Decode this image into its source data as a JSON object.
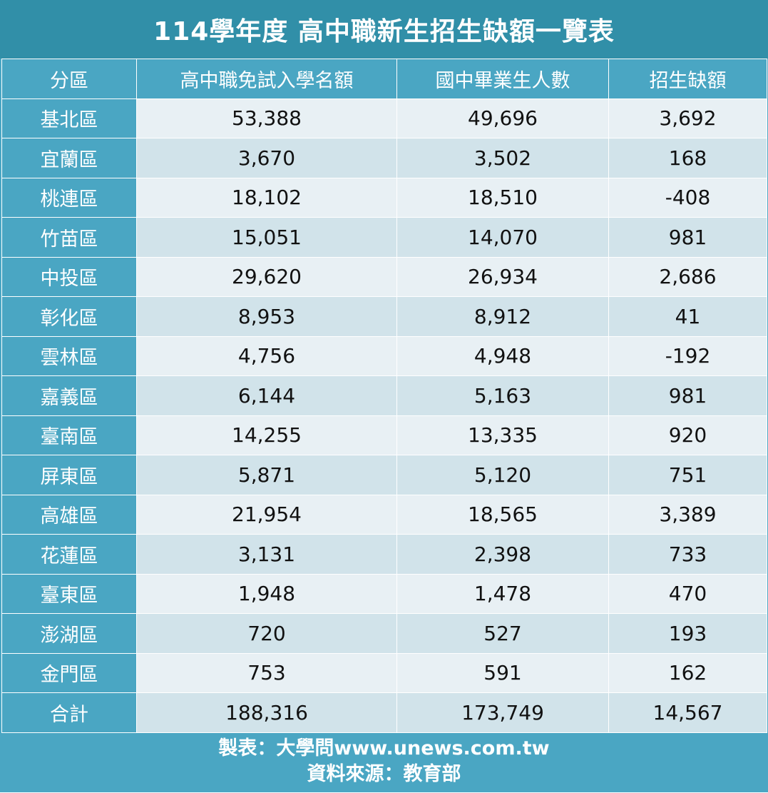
{
  "title": "114學年度 高中職新生招生缺額一覽表",
  "headers": [
    "分區",
    "高中職免試入學名額",
    "國中畢業生人數",
    "招生缺額"
  ],
  "rows": [
    {
      "region": "基北區",
      "quota": "53,388",
      "graduates": "49,696",
      "vacancy": "3,692"
    },
    {
      "region": "宜蘭區",
      "quota": "3,670",
      "graduates": "3,502",
      "vacancy": "168"
    },
    {
      "region": "桃連區",
      "quota": "18,102",
      "graduates": "18,510",
      "vacancy": "-408"
    },
    {
      "region": "竹苗區",
      "quota": "15,051",
      "graduates": "14,070",
      "vacancy": "981"
    },
    {
      "region": "中投區",
      "quota": "29,620",
      "graduates": "26,934",
      "vacancy": "2,686"
    },
    {
      "region": "彰化區",
      "quota": "8,953",
      "graduates": "8,912",
      "vacancy": "41"
    },
    {
      "region": "雲林區",
      "quota": "4,756",
      "graduates": "4,948",
      "vacancy": "-192"
    },
    {
      "region": "嘉義區",
      "quota": "6,144",
      "graduates": "5,163",
      "vacancy": "981"
    },
    {
      "region": "臺南區",
      "quota": "14,255",
      "graduates": "13,335",
      "vacancy": "920"
    },
    {
      "region": "屏東區",
      "quota": "5,871",
      "graduates": "5,120",
      "vacancy": "751"
    },
    {
      "region": "高雄區",
      "quota": "21,954",
      "graduates": "18,565",
      "vacancy": "3,389"
    },
    {
      "region": "花蓮區",
      "quota": "3,131",
      "graduates": "2,398",
      "vacancy": "733"
    },
    {
      "region": "臺東區",
      "quota": "1,948",
      "graduates": "1,478",
      "vacancy": "470"
    },
    {
      "region": "澎湖區",
      "quota": "720",
      "graduates": "527",
      "vacancy": "193"
    },
    {
      "region": "金門區",
      "quota": "753",
      "graduates": "591",
      "vacancy": "162"
    },
    {
      "region": "合計",
      "quota": "188,316",
      "graduates": "173,749",
      "vacancy": "14,567"
    }
  ],
  "footer": {
    "credit": "製表：大學問www.unews.com.tw",
    "source": "資料來源：教育部"
  }
}
